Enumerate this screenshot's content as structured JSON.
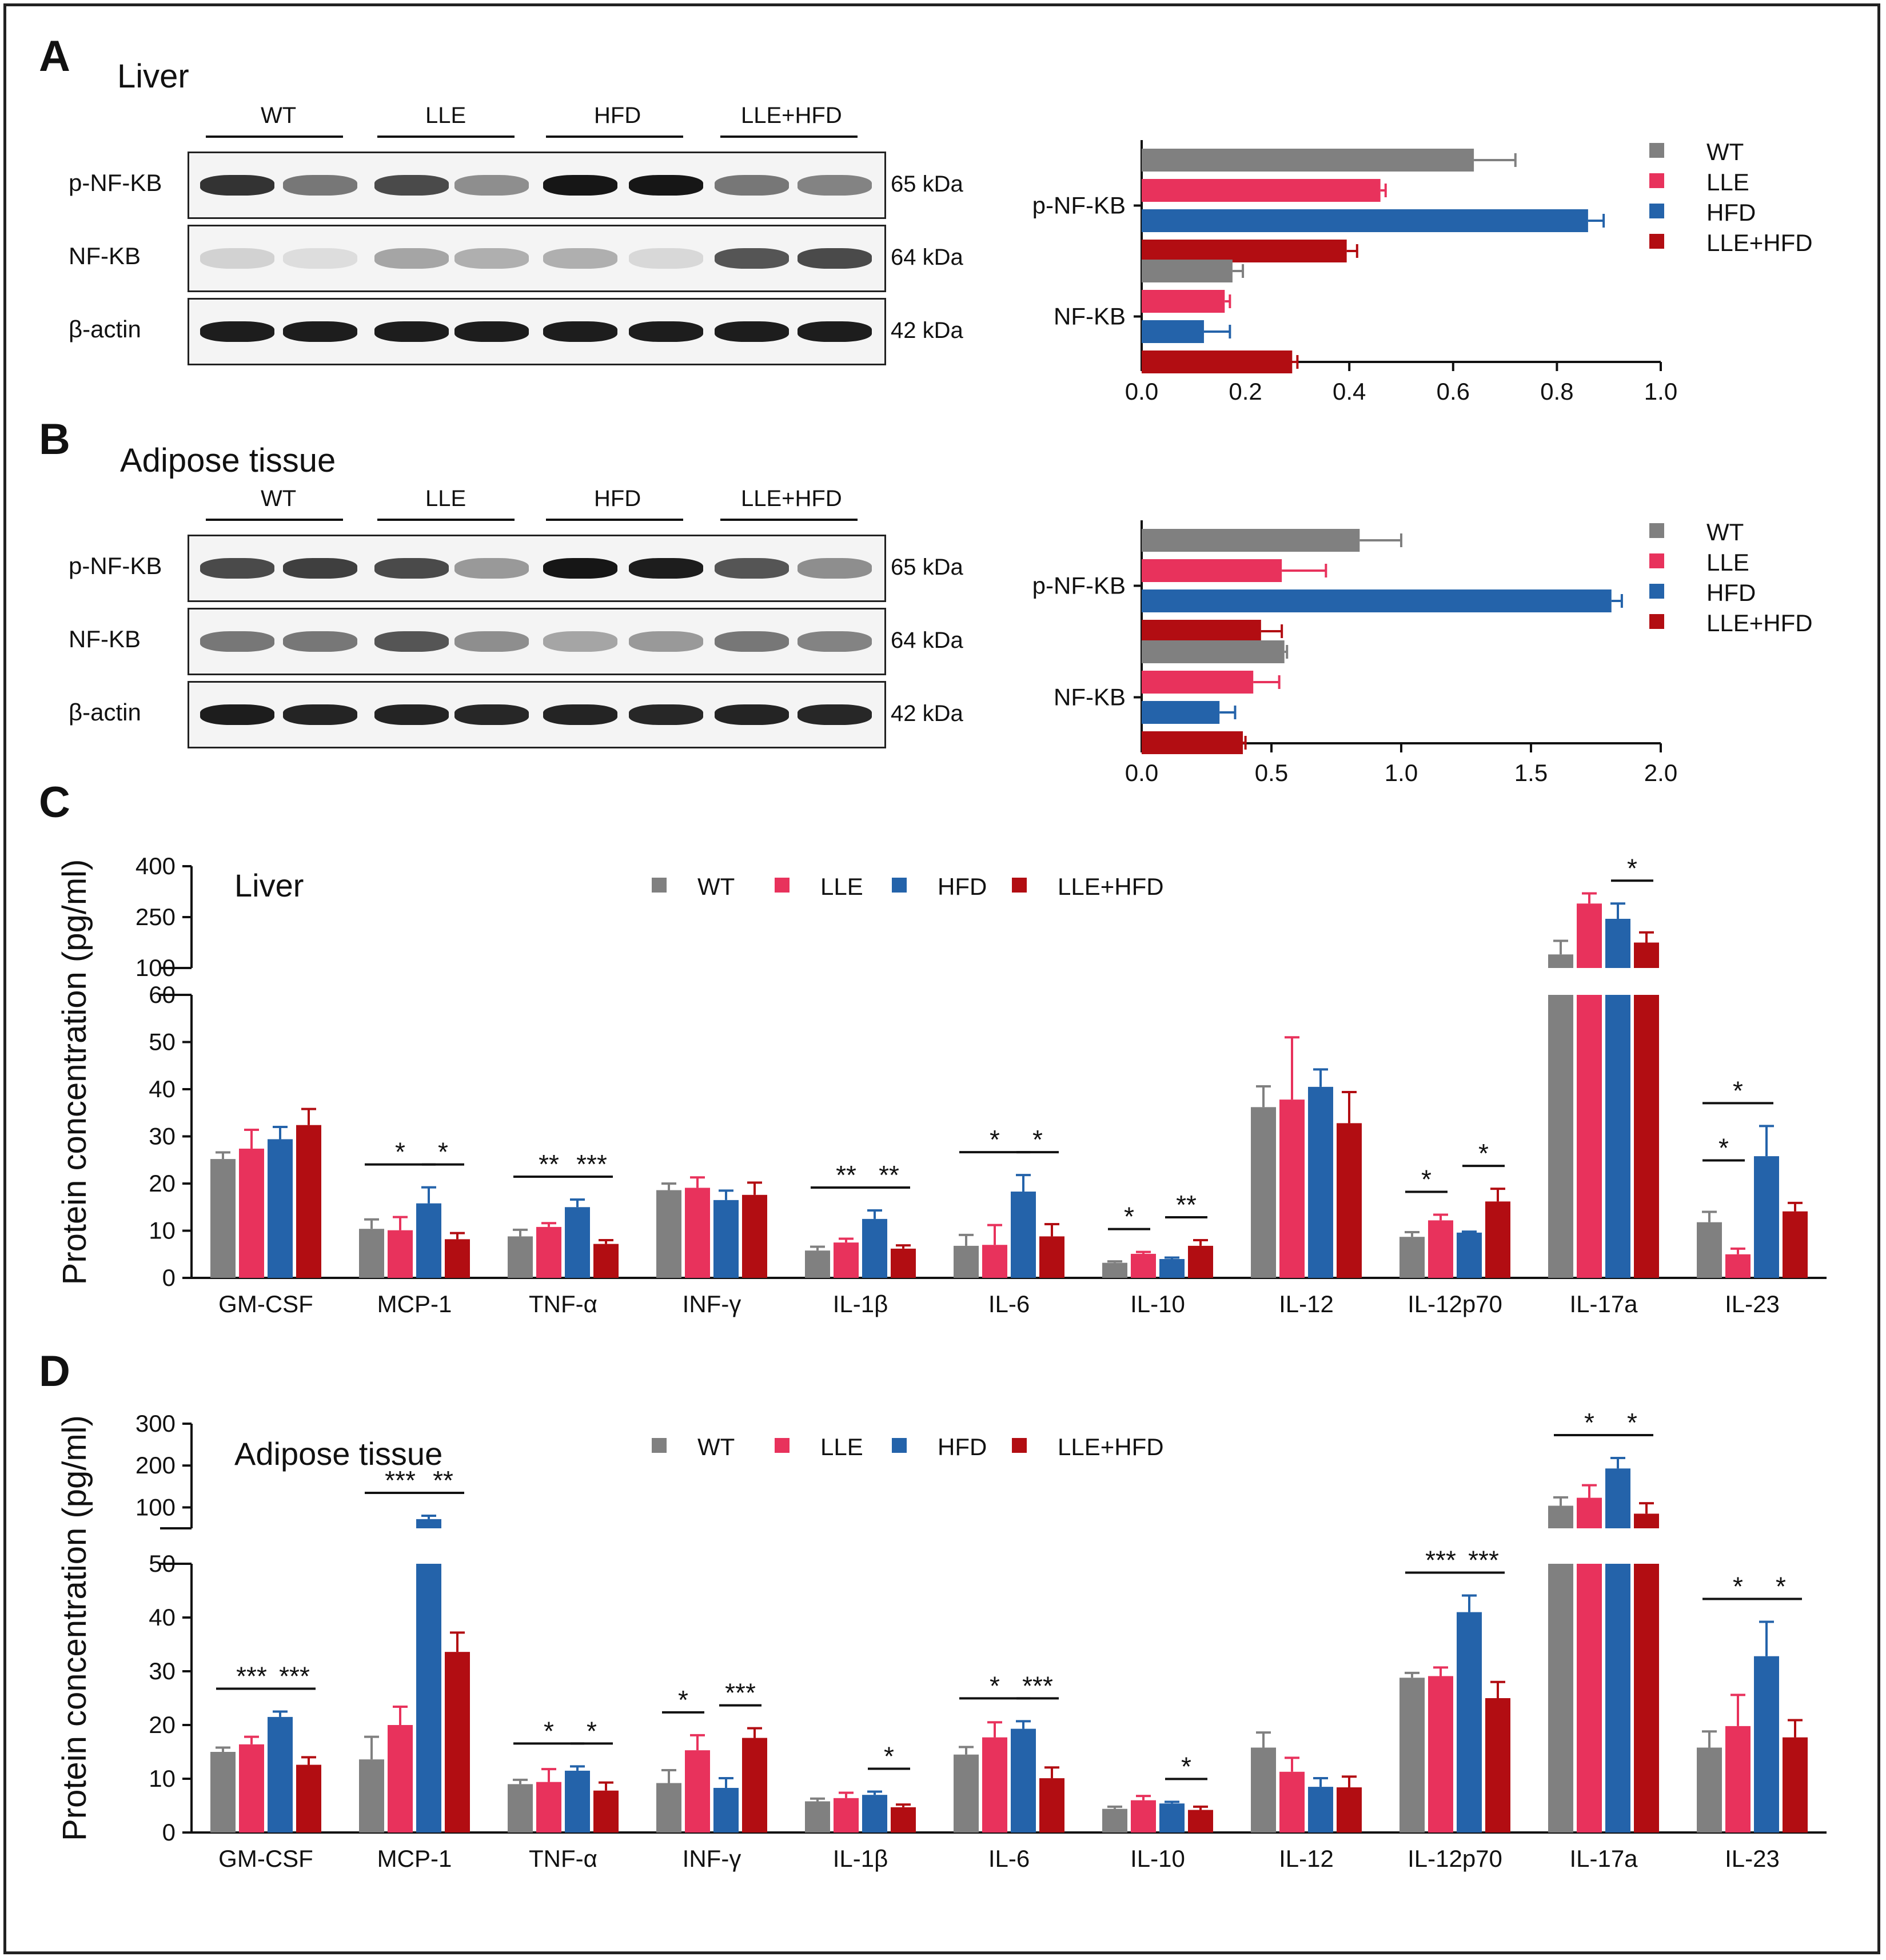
{
  "colors": {
    "WT": "#808080",
    "LLE": "#E8325C",
    "HFD": "#2463AA",
    "LLE+HFD": "#B20D12"
  },
  "panels": {
    "A": {
      "letter": "A",
      "title": "Liver"
    },
    "B": {
      "letter": "B",
      "title": "Adipose  tissue"
    },
    "C": {
      "letter": "C"
    },
    "D": {
      "letter": "D"
    }
  },
  "blots": {
    "groups": [
      "WT",
      "LLE",
      "HFD",
      "LLE+HFD"
    ],
    "rows": [
      {
        "label": "p-NF-KB",
        "kda": "65 kDa"
      },
      {
        "label": "NF-KB",
        "kda": "64 kDa"
      },
      {
        "label": "β-actin",
        "kda": "42 kDa"
      }
    ]
  },
  "chart_data": [
    {
      "id": "A-bar",
      "type": "bar",
      "orientation": "horizontal",
      "categories": [
        "p-NF-KB",
        "NF-KB"
      ],
      "series": [
        {
          "name": "WT",
          "values": [
            0.64,
            0.175
          ],
          "errors": [
            0.08,
            0.02
          ]
        },
        {
          "name": "LLE",
          "values": [
            0.46,
            0.16
          ],
          "errors": [
            0.01,
            0.01
          ]
        },
        {
          "name": "HFD",
          "values": [
            0.86,
            0.12
          ],
          "errors": [
            0.03,
            0.05
          ]
        },
        {
          "name": "LLE+HFD",
          "values": [
            0.395,
            0.29
          ],
          "errors": [
            0.02,
            0.01
          ]
        }
      ],
      "xlim": [
        0,
        1.0
      ],
      "xticks": [
        "0.0",
        "0.2",
        "0.4",
        "0.6",
        "0.8",
        "1.0"
      ],
      "legend": "right"
    },
    {
      "id": "B-bar",
      "type": "bar",
      "orientation": "horizontal",
      "categories": [
        "p-NF-KB",
        "NF-KB"
      ],
      "series": [
        {
          "name": "WT",
          "values": [
            0.84,
            0.55
          ],
          "errors": [
            0.16,
            0.01
          ]
        },
        {
          "name": "LLE",
          "values": [
            0.54,
            0.43
          ],
          "errors": [
            0.17,
            0.1
          ]
        },
        {
          "name": "HFD",
          "values": [
            1.81,
            0.3
          ],
          "errors": [
            0.04,
            0.06
          ]
        },
        {
          "name": "LLE+HFD",
          "values": [
            0.46,
            0.39
          ],
          "errors": [
            0.08,
            0.01
          ]
        }
      ],
      "xlim": [
        0,
        2.0
      ],
      "xticks": [
        "0.0",
        "0.5",
        "1.0",
        "1.5",
        "2.0"
      ],
      "legend": "right"
    },
    {
      "id": "C-bar",
      "type": "bar",
      "title": "Liver",
      "ylabel": "Protein concentration (pg/ml)",
      "categories": [
        "GM-CSF",
        "MCP-1",
        "TNF-α",
        "INF-γ",
        "IL-1β",
        "IL-6",
        "IL-10",
        "IL-12",
        "IL-12p70",
        "IL-17a",
        "IL-23"
      ],
      "series": [
        {
          "name": "WT",
          "values": [
            25.2,
            10.4,
            8.8,
            18.6,
            5.8,
            6.8,
            3.2,
            36.2,
            8.7,
            140,
            11.8
          ],
          "errors": [
            1.4,
            2.0,
            1.4,
            1.4,
            0.8,
            2.3,
            0.3,
            4.4,
            1.0,
            40,
            2.2
          ]
        },
        {
          "name": "LLE",
          "values": [
            27.4,
            10.1,
            10.8,
            19.1,
            7.5,
            7.0,
            5.1,
            37.8,
            12.2,
            290,
            5.0
          ],
          "errors": [
            4.0,
            2.8,
            0.8,
            2.2,
            0.8,
            4.2,
            0.4,
            13.2,
            1.2,
            30,
            1.2
          ]
        },
        {
          "name": "HFD",
          "values": [
            29.4,
            15.8,
            15.0,
            16.5,
            12.5,
            18.3,
            4.0,
            40.5,
            9.6,
            245,
            25.8
          ],
          "errors": [
            2.6,
            3.4,
            1.6,
            2.0,
            1.8,
            3.5,
            0.3,
            3.7,
            0.2,
            45,
            6.4
          ]
        },
        {
          "name": "LLE+HFD",
          "values": [
            32.4,
            8.2,
            7.2,
            17.6,
            6.2,
            8.8,
            6.8,
            32.8,
            16.2,
            175,
            14.1
          ],
          "errors": [
            3.4,
            1.3,
            0.8,
            2.6,
            0.7,
            2.6,
            1.2,
            6.6,
            2.7,
            30,
            1.8
          ]
        }
      ],
      "y_axis_lower": {
        "range": [
          0,
          60
        ],
        "ticks": [
          "0",
          "10",
          "20",
          "30",
          "40",
          "50",
          "60"
        ]
      },
      "y_axis_upper": {
        "range": [
          100,
          400
        ],
        "ticks": [
          "100",
          "250",
          "400"
        ]
      },
      "axis_break": true,
      "significance": [
        {
          "category": "MCP-1",
          "pair": [
            "WT",
            "HFD"
          ],
          "label": "*"
        },
        {
          "category": "MCP-1",
          "pair": [
            "HFD",
            "LLE+HFD"
          ],
          "label": "*"
        },
        {
          "category": "TNF-α",
          "pair": [
            "WT",
            "HFD"
          ],
          "label": "**"
        },
        {
          "category": "TNF-α",
          "pair": [
            "HFD",
            "LLE+HFD"
          ],
          "label": "***"
        },
        {
          "category": "IL-1β",
          "pair": [
            "WT",
            "HFD"
          ],
          "label": "**"
        },
        {
          "category": "IL-1β",
          "pair": [
            "HFD",
            "LLE+HFD"
          ],
          "label": "**"
        },
        {
          "category": "IL-6",
          "pair": [
            "WT",
            "HFD"
          ],
          "label": "*"
        },
        {
          "category": "IL-6",
          "pair": [
            "HFD",
            "LLE+HFD"
          ],
          "label": "*"
        },
        {
          "category": "IL-10",
          "pair": [
            "WT",
            "LLE"
          ],
          "label": "*"
        },
        {
          "category": "IL-10",
          "pair": [
            "HFD",
            "LLE+HFD"
          ],
          "label": "**"
        },
        {
          "category": "IL-12p70",
          "pair": [
            "WT",
            "LLE"
          ],
          "label": "*"
        },
        {
          "category": "IL-12p70",
          "pair": [
            "HFD",
            "LLE+HFD"
          ],
          "label": "*"
        },
        {
          "category": "IL-17a",
          "pair": [
            "HFD",
            "LLE+HFD"
          ],
          "label": "*"
        },
        {
          "category": "IL-23",
          "pair": [
            "WT",
            "HFD"
          ],
          "label": "*"
        },
        {
          "category": "IL-23",
          "pair": [
            "WT",
            "LLE"
          ],
          "label": "*"
        }
      ],
      "legend": "top"
    },
    {
      "id": "D-bar",
      "type": "bar",
      "title": "Adipose  tissue",
      "ylabel": "Protein concentration (pg/ml)",
      "categories": [
        "GM-CSF",
        "MCP-1",
        "TNF-α",
        "INF-γ",
        "IL-1β",
        "IL-6",
        "IL-10",
        "IL-12",
        "IL-12p70",
        "IL-17a",
        "IL-23"
      ],
      "series": [
        {
          "name": "WT",
          "values": [
            15.0,
            13.6,
            9.0,
            9.2,
            5.8,
            14.5,
            4.4,
            15.8,
            28.8,
            104,
            15.8
          ],
          "errors": [
            0.8,
            4.2,
            0.8,
            2.4,
            0.5,
            1.4,
            0.4,
            2.8,
            0.9,
            20,
            3.0
          ]
        },
        {
          "name": "LLE",
          "values": [
            16.4,
            20.0,
            9.4,
            15.3,
            6.4,
            17.7,
            6.0,
            11.3,
            29.1,
            123,
            19.8
          ],
          "errors": [
            1.4,
            3.4,
            2.4,
            2.8,
            1.0,
            2.8,
            0.8,
            2.6,
            1.6,
            30,
            5.8
          ]
        },
        {
          "name": "HFD",
          "values": [
            21.5,
            72,
            11.5,
            8.3,
            7.0,
            19.3,
            5.4,
            8.5,
            41.0,
            193,
            32.8
          ],
          "errors": [
            1.0,
            8,
            0.8,
            1.8,
            0.6,
            1.4,
            0.3,
            1.6,
            3.1,
            25,
            6.4
          ]
        },
        {
          "name": "LLE+HFD",
          "values": [
            12.6,
            33.6,
            7.8,
            17.6,
            4.7,
            10.1,
            4.2,
            8.4,
            25.0,
            85,
            17.7
          ],
          "errors": [
            1.4,
            3.6,
            1.5,
            1.8,
            0.5,
            2.0,
            0.6,
            2.0,
            3.0,
            25,
            3.2
          ]
        }
      ],
      "y_axis_lower": {
        "range": [
          0,
          50
        ],
        "ticks": [
          "0",
          "10",
          "20",
          "30",
          "40",
          "50"
        ]
      },
      "y_axis_upper": {
        "range": [
          50,
          300
        ],
        "ticks": [
          "100",
          "200",
          "300"
        ]
      },
      "axis_break": true,
      "significance": [
        {
          "category": "GM-CSF",
          "pair": [
            "WT",
            "HFD"
          ],
          "label": "***"
        },
        {
          "category": "GM-CSF",
          "pair": [
            "HFD",
            "LLE+HFD"
          ],
          "label": "***"
        },
        {
          "category": "MCP-1",
          "pair": [
            "WT",
            "HFD"
          ],
          "label": "***"
        },
        {
          "category": "MCP-1",
          "pair": [
            "HFD",
            "LLE+HFD"
          ],
          "label": "**"
        },
        {
          "category": "TNF-α",
          "pair": [
            "WT",
            "HFD"
          ],
          "label": "*"
        },
        {
          "category": "TNF-α",
          "pair": [
            "HFD",
            "LLE+HFD"
          ],
          "label": "*"
        },
        {
          "category": "INF-γ",
          "pair": [
            "WT",
            "LLE"
          ],
          "label": "*"
        },
        {
          "category": "INF-γ",
          "pair": [
            "HFD",
            "LLE+HFD"
          ],
          "label": "***"
        },
        {
          "category": "IL-1β",
          "pair": [
            "HFD",
            "LLE+HFD"
          ],
          "label": "*"
        },
        {
          "category": "IL-6",
          "pair": [
            "WT",
            "HFD"
          ],
          "label": "*"
        },
        {
          "category": "IL-6",
          "pair": [
            "HFD",
            "LLE+HFD"
          ],
          "label": "***"
        },
        {
          "category": "IL-10",
          "pair": [
            "HFD",
            "LLE+HFD"
          ],
          "label": "*"
        },
        {
          "category": "IL-12p70",
          "pair": [
            "WT",
            "HFD"
          ],
          "label": "***"
        },
        {
          "category": "IL-12p70",
          "pair": [
            "HFD",
            "LLE+HFD"
          ],
          "label": "***"
        },
        {
          "category": "IL-17a",
          "pair": [
            "WT",
            "HFD"
          ],
          "label": "*"
        },
        {
          "category": "IL-17a",
          "pair": [
            "HFD",
            "LLE+HFD"
          ],
          "label": "*"
        },
        {
          "category": "IL-23",
          "pair": [
            "WT",
            "HFD"
          ],
          "label": "*"
        },
        {
          "category": "IL-23",
          "pair": [
            "HFD",
            "LLE+HFD"
          ],
          "label": "*"
        }
      ],
      "legend": "top"
    }
  ]
}
